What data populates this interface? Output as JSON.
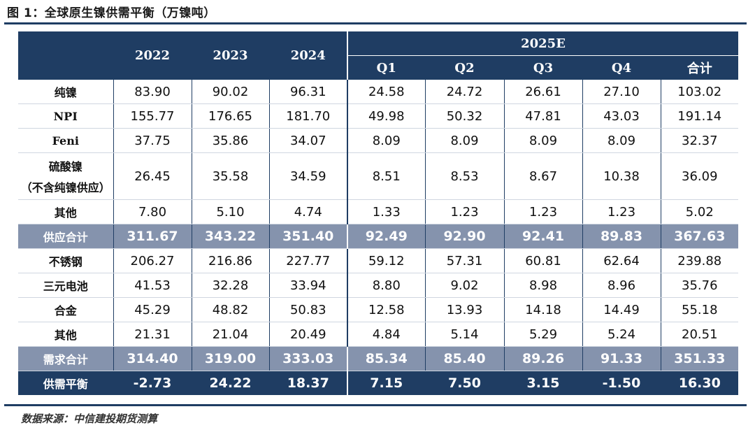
{
  "title": "图 1：全球原生镍供需平衡（万镍吨）",
  "source": "数据来源：中信建投期货测算",
  "header": {
    "years": [
      "2022",
      "2023",
      "2024"
    ],
    "group": "2025E",
    "quarters": [
      "Q1",
      "Q2",
      "Q3",
      "Q4",
      "合计"
    ]
  },
  "rows": {
    "pure_nickel": {
      "label": "纯镍",
      "values": [
        "83.90",
        "90.02",
        "96.31",
        "24.58",
        "24.72",
        "26.61",
        "27.10",
        "103.02"
      ]
    },
    "npi": {
      "label": "NPI",
      "values": [
        "155.77",
        "176.65",
        "181.70",
        "49.98",
        "50.32",
        "47.81",
        "43.03",
        "191.14"
      ]
    },
    "feni": {
      "label": "Feni",
      "values": [
        "37.75",
        "35.86",
        "34.07",
        "8.09",
        "8.09",
        "8.09",
        "8.09",
        "32.37"
      ]
    },
    "nickel_sulfate": {
      "label": "硫酸镍",
      "label2": "（不含纯镍供应）",
      "values": [
        "26.45",
        "35.58",
        "34.59",
        "8.51",
        "8.53",
        "8.67",
        "10.38",
        "36.09"
      ]
    },
    "supply_other": {
      "label": "其他",
      "values": [
        "7.80",
        "5.10",
        "4.74",
        "1.33",
        "1.23",
        "1.23",
        "1.23",
        "5.02"
      ]
    },
    "supply_total": {
      "label": "供应合计",
      "values": [
        "311.67",
        "343.22",
        "351.40",
        "92.49",
        "92.90",
        "92.41",
        "89.83",
        "367.63"
      ]
    },
    "stainless": {
      "label": "不锈钢",
      "values": [
        "206.27",
        "216.86",
        "227.77",
        "59.12",
        "57.31",
        "60.81",
        "62.64",
        "239.88"
      ]
    },
    "ternary_battery": {
      "label": "三元电池",
      "values": [
        "41.53",
        "32.28",
        "33.94",
        "8.80",
        "9.02",
        "8.98",
        "8.96",
        "35.76"
      ]
    },
    "alloy": {
      "label": "合金",
      "values": [
        "45.29",
        "48.82",
        "50.83",
        "12.58",
        "13.93",
        "14.18",
        "14.49",
        "55.18"
      ]
    },
    "demand_other": {
      "label": "其他",
      "values": [
        "21.31",
        "21.04",
        "20.49",
        "4.84",
        "5.14",
        "5.29",
        "5.24",
        "20.51"
      ]
    },
    "demand_total": {
      "label": "需求合计",
      "values": [
        "314.40",
        "319.00",
        "333.03",
        "85.34",
        "85.40",
        "89.26",
        "91.33",
        "351.33"
      ]
    },
    "balance": {
      "label": "供需平衡",
      "values": [
        "-2.73",
        "24.22",
        "18.37",
        "7.15",
        "7.50",
        "3.15",
        "-1.50",
        "16.30"
      ]
    }
  }
}
